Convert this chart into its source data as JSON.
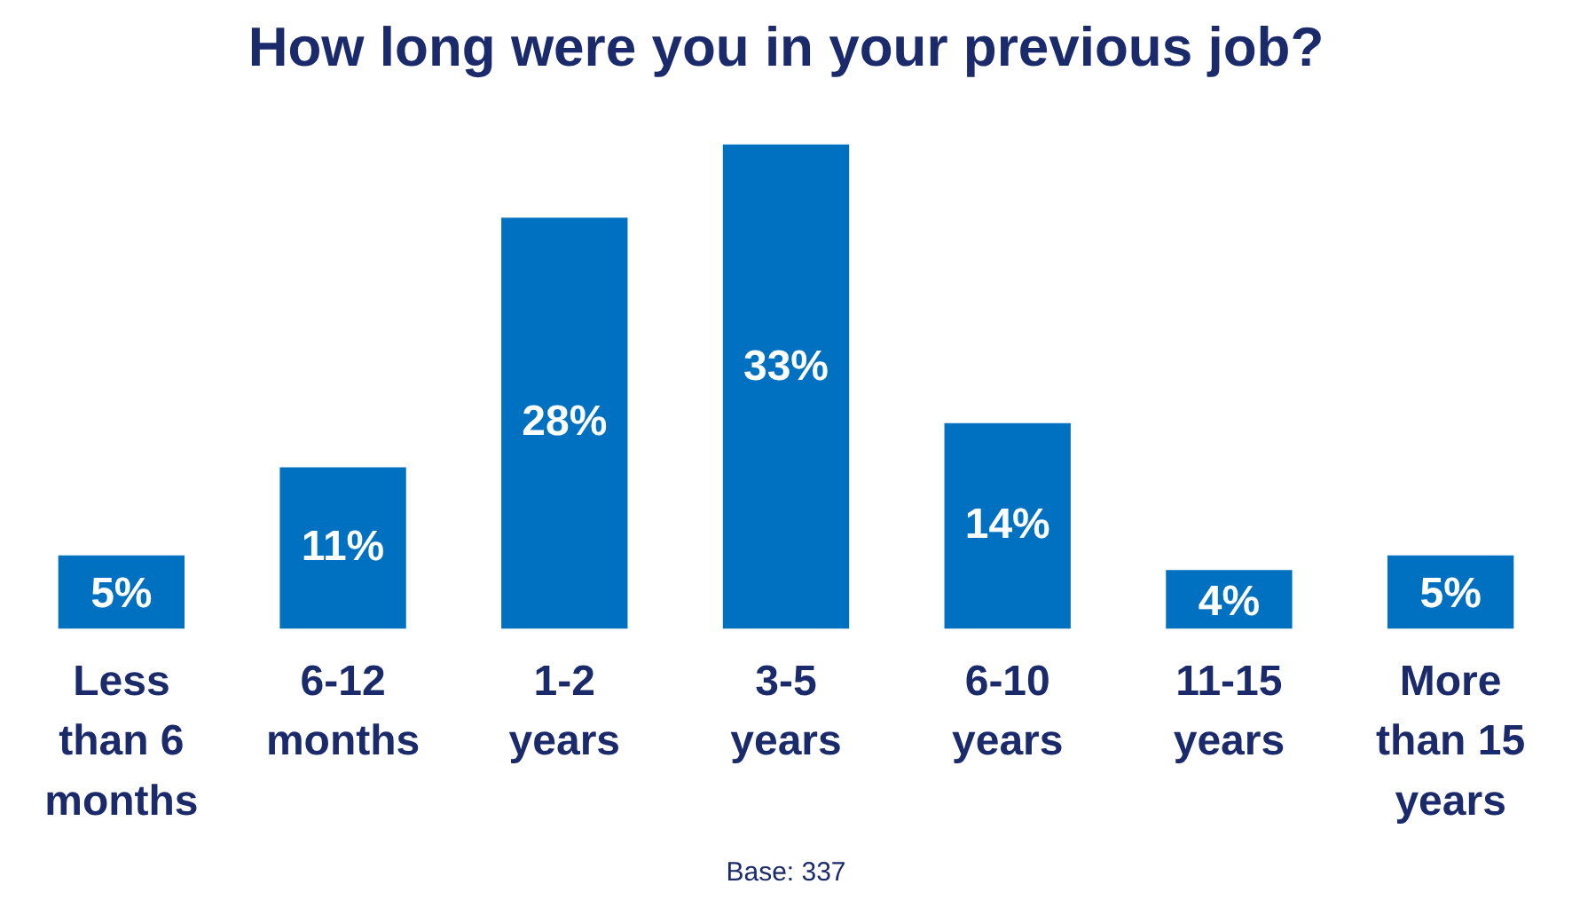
{
  "chart_data": {
    "type": "bar",
    "title": "How long were you in your previous job?",
    "categories": [
      "Less than 6 months",
      "6-12 months",
      "1-2 years",
      "3-5 years",
      "6-10 years",
      "11-15 years",
      "More than 15 years"
    ],
    "values": [
      5,
      11,
      28,
      33,
      14,
      4,
      5
    ],
    "color": "#0070c0",
    "data_labels": true,
    "value_labels": [
      "5%",
      "11%",
      "28%",
      "33%",
      "14%",
      "4%",
      "5%"
    ],
    "grid": false,
    "legend": false,
    "annotations": [
      "Base: 337"
    ]
  }
}
